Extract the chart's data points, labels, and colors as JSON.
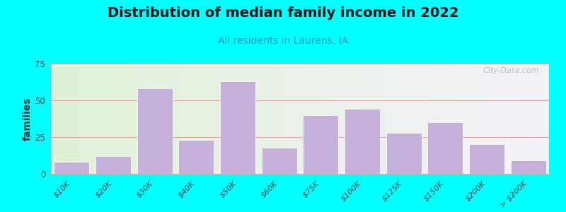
{
  "title": "Distribution of median family income in 2022",
  "subtitle": "All residents in Laurens, IA",
  "ylabel": "families",
  "background_outer": "#00FFFF",
  "bar_color": "#c4b0d8",
  "bar_edge_color": "#ffffff",
  "categories": [
    "$10K",
    "$20K",
    "$30K",
    "$40K",
    "$50K",
    "$60K",
    "$75K",
    "$100K",
    "$125K",
    "$150K",
    "$200K",
    "> $200K"
  ],
  "values": [
    8,
    12,
    58,
    23,
    63,
    18,
    40,
    44,
    28,
    35,
    20,
    9
  ],
  "ylim": [
    0,
    75
  ],
  "yticks": [
    0,
    25,
    50,
    75
  ],
  "watermark": "City-Data.com",
  "title_fontsize": 14,
  "subtitle_fontsize": 10,
  "ylabel_fontsize": 10,
  "grid_color": "#e0a0a0",
  "bg_color_left": "#e0f0d8",
  "bg_color_right": "#ece8f4"
}
